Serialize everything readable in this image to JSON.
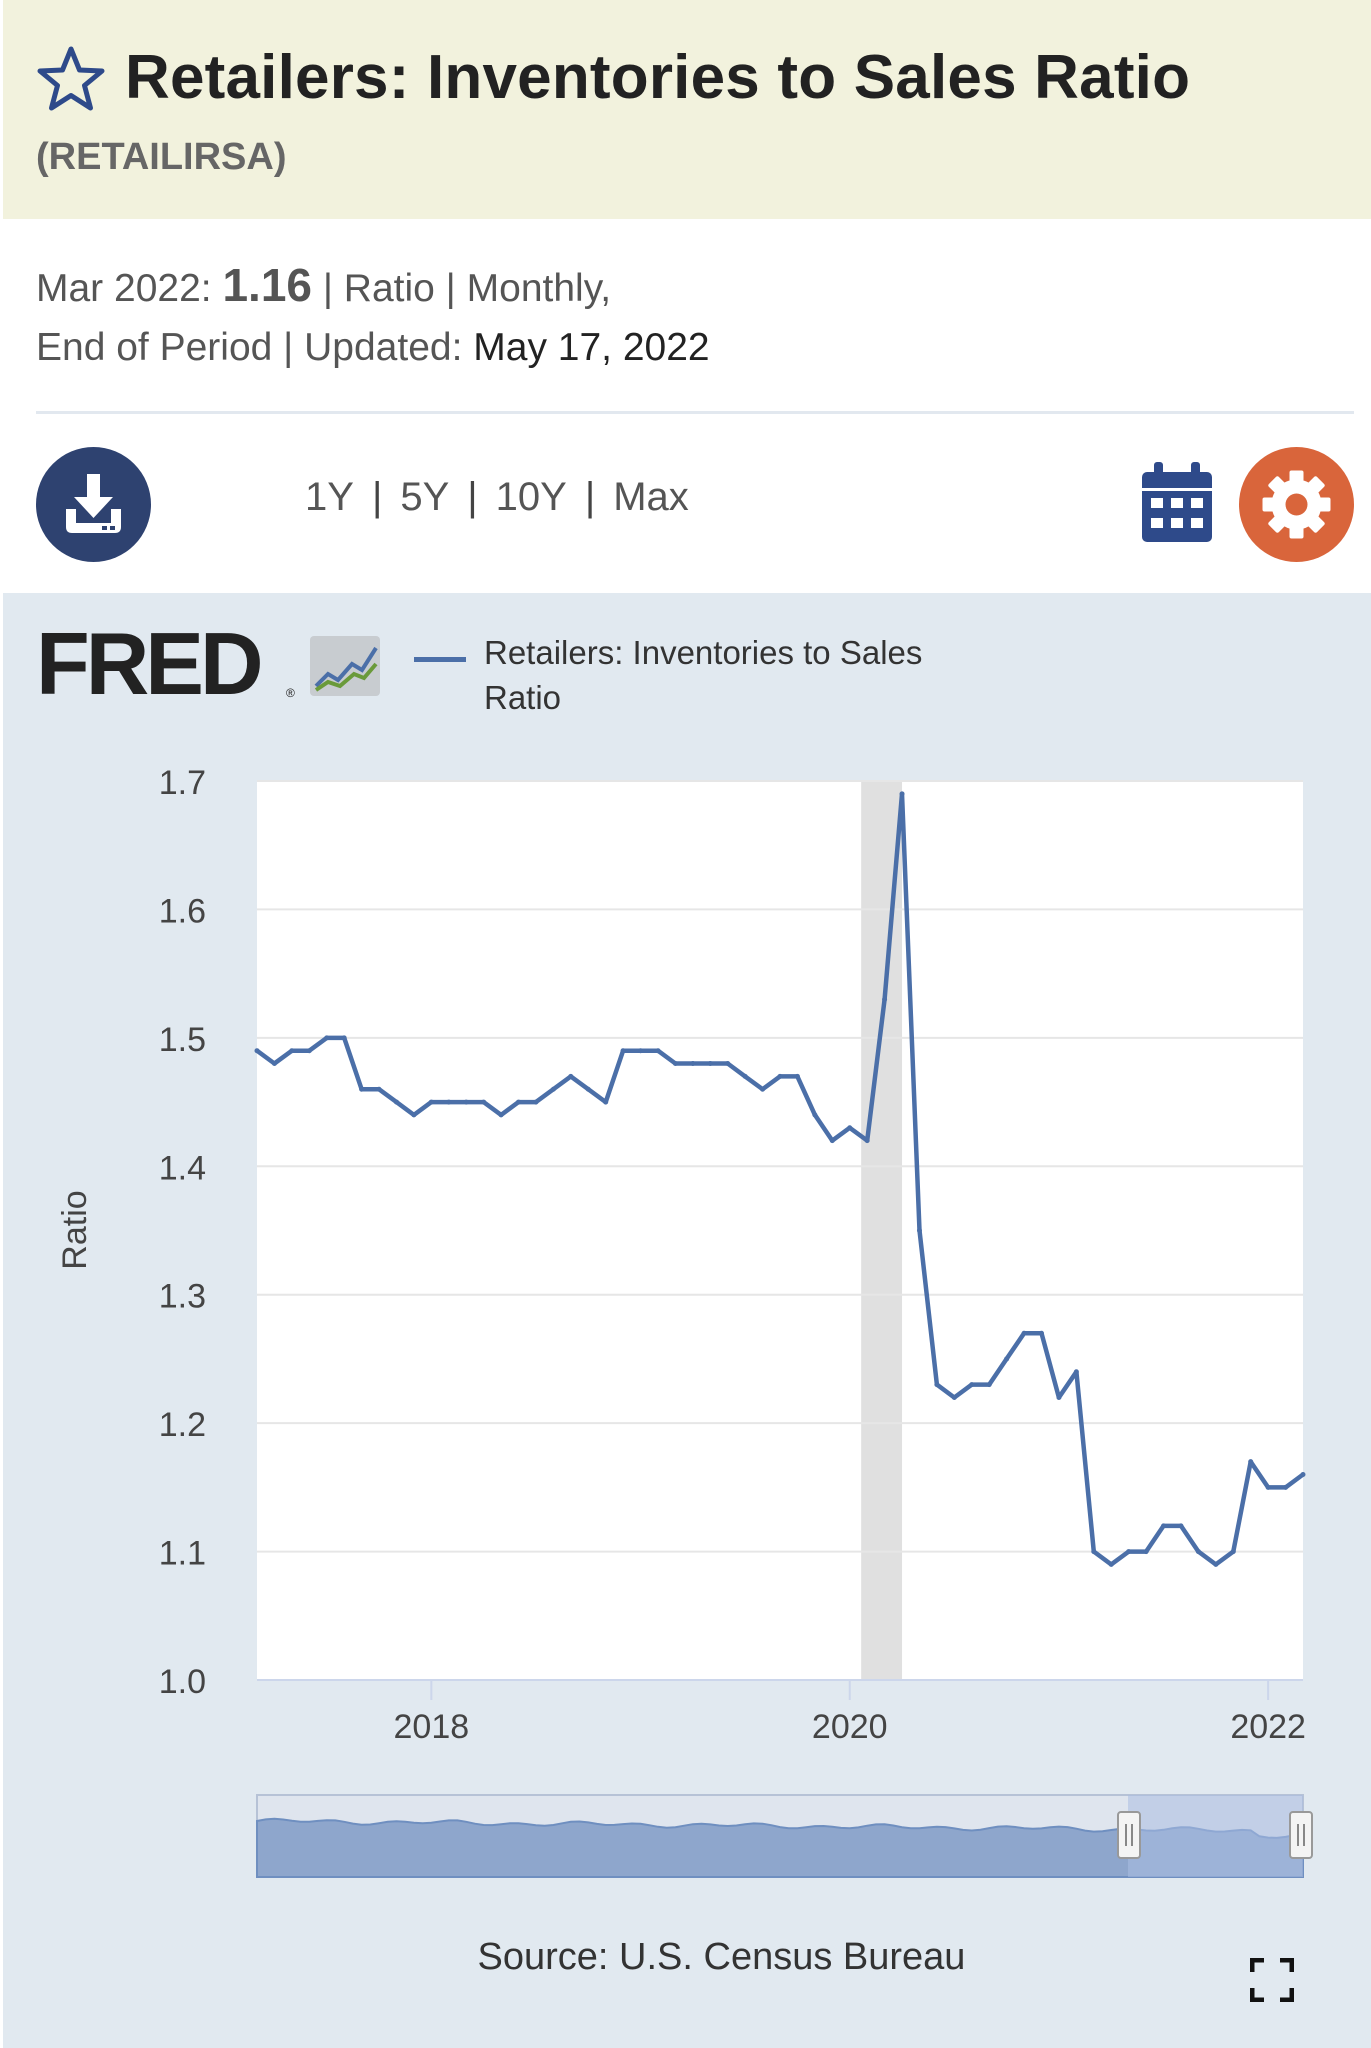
{
  "header": {
    "title": "Retailers: Inventories to Sales Ratio",
    "series_id": "(RETAILIRSA)"
  },
  "meta": {
    "date_label": "Mar 2022:",
    "value": "1.16",
    "units": "| Ratio | Monthly,",
    "period_label": "End of Period | Updated:",
    "updated": "May 17, 2022"
  },
  "toolbar": {
    "ranges": [
      "1Y",
      "5Y",
      "10Y",
      "Max"
    ],
    "separator": "|"
  },
  "colors": {
    "header_bg": "#f2f2dd",
    "chart_bg": "#e1e9f0",
    "series": "#4b6fa8",
    "download_button": "#2e4270",
    "settings_button": "#d9653b",
    "recession_band": "#e0e0e0"
  },
  "icons": [
    "star-icon",
    "download-icon",
    "calendar-icon",
    "gear-icon",
    "fullscreen-icon"
  ],
  "logo": {
    "text": "FRED",
    "mark": "®"
  },
  "source": "Source: U.S. Census Bureau",
  "chart_data": {
    "type": "line",
    "title": "",
    "ylabel": "Ratio",
    "xlabel": "",
    "ylim": [
      1.0,
      1.7
    ],
    "yticks": [
      "1.0",
      "1.1",
      "1.2",
      "1.3",
      "1.4",
      "1.5",
      "1.6",
      "1.7"
    ],
    "xticks": [
      {
        "label": "2018",
        "date": "2018-01"
      },
      {
        "label": "2020",
        "date": "2020-01"
      },
      {
        "label": "2022",
        "date": "2022-01"
      }
    ],
    "grid": true,
    "recession": {
      "start": "2020-02",
      "end": "2020-04"
    },
    "series": [
      {
        "name": "Retailers: Inventories to Sales Ratio",
        "x": [
          "2017-03",
          "2017-04",
          "2017-05",
          "2017-06",
          "2017-07",
          "2017-08",
          "2017-09",
          "2017-10",
          "2017-11",
          "2017-12",
          "2018-01",
          "2018-02",
          "2018-03",
          "2018-04",
          "2018-05",
          "2018-06",
          "2018-07",
          "2018-08",
          "2018-09",
          "2018-10",
          "2018-11",
          "2018-12",
          "2019-01",
          "2019-02",
          "2019-03",
          "2019-04",
          "2019-05",
          "2019-06",
          "2019-07",
          "2019-08",
          "2019-09",
          "2019-10",
          "2019-11",
          "2019-12",
          "2020-01",
          "2020-02",
          "2020-03",
          "2020-04",
          "2020-05",
          "2020-06",
          "2020-07",
          "2020-08",
          "2020-09",
          "2020-10",
          "2020-11",
          "2020-12",
          "2021-01",
          "2021-02",
          "2021-03",
          "2021-04",
          "2021-05",
          "2021-06",
          "2021-07",
          "2021-08",
          "2021-09",
          "2021-10",
          "2021-11",
          "2021-12",
          "2022-01",
          "2022-02",
          "2022-03"
        ],
        "values": [
          1.49,
          1.48,
          1.49,
          1.49,
          1.5,
          1.5,
          1.46,
          1.46,
          1.45,
          1.44,
          1.45,
          1.45,
          1.45,
          1.45,
          1.44,
          1.45,
          1.45,
          1.46,
          1.47,
          1.46,
          1.45,
          1.49,
          1.49,
          1.49,
          1.48,
          1.48,
          1.48,
          1.48,
          1.47,
          1.46,
          1.47,
          1.47,
          1.44,
          1.42,
          1.43,
          1.42,
          1.53,
          1.69,
          1.35,
          1.23,
          1.22,
          1.23,
          1.23,
          1.25,
          1.27,
          1.27,
          1.22,
          1.24,
          1.1,
          1.09,
          1.1,
          1.1,
          1.12,
          1.12,
          1.1,
          1.09,
          1.1,
          1.17,
          1.15,
          1.15,
          1.16
        ]
      }
    ]
  }
}
